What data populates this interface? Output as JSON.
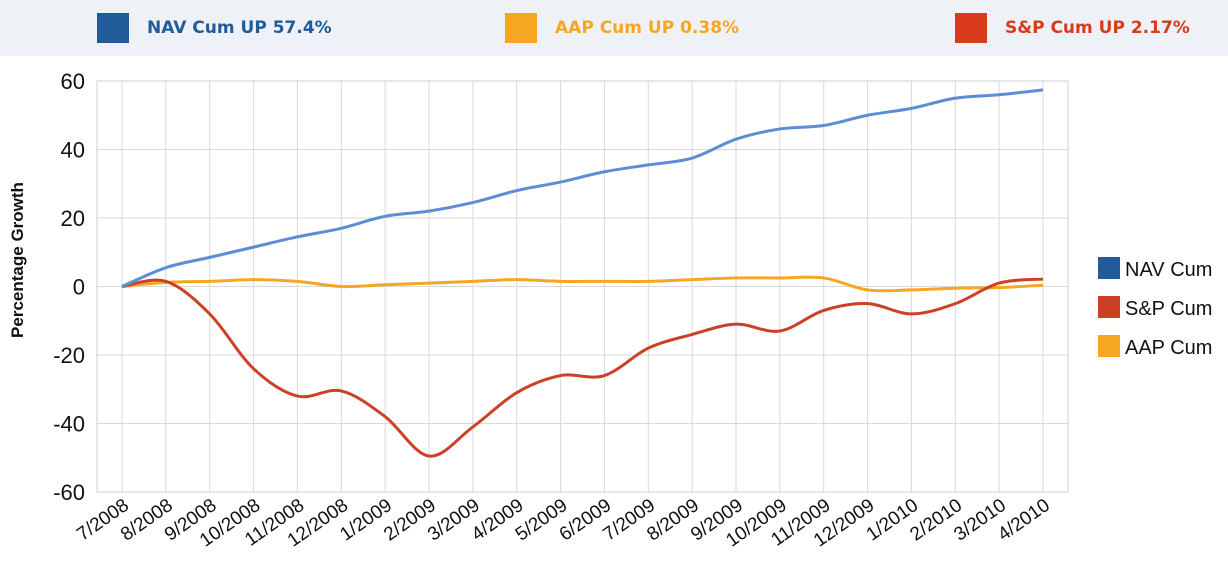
{
  "banner": {
    "items": [
      {
        "label": "NAV Cum UP 57.4%",
        "color": "#1f5c99"
      },
      {
        "label": "AAP Cum UP 0.38%",
        "color": "#f5a623"
      },
      {
        "label": "S&P Cum UP 2.17%",
        "color": "#d93a1a"
      }
    ]
  },
  "chart_data": {
    "type": "line",
    "title": "",
    "xlabel": "",
    "ylabel": "Percentage Growth",
    "ylim": [
      -60,
      60
    ],
    "yticks": [
      60,
      40,
      20,
      0,
      -20,
      -40,
      -60
    ],
    "grid": true,
    "legend_position": "right",
    "x": [
      "7/2008",
      "8/2008",
      "9/2008",
      "10/2008",
      "11/2008",
      "12/2008",
      "1/2009",
      "2/2009",
      "3/2009",
      "4/2009",
      "5/2009",
      "6/2009",
      "7/2009",
      "8/2009",
      "9/2009",
      "10/2009",
      "11/2009",
      "12/2009",
      "1/2010",
      "2/2010",
      "3/2010",
      "4/2010"
    ],
    "series": [
      {
        "name": "NAV Cum",
        "color": "#5b8ed6",
        "legend_color": "#1f5c99",
        "values": [
          0,
          5.5,
          8.5,
          11.5,
          14.5,
          17,
          20.5,
          22,
          24.5,
          28,
          30.5,
          33.5,
          35.5,
          37.5,
          43,
          46,
          47,
          50,
          52,
          55,
          56,
          57.4
        ]
      },
      {
        "name": "S&P Cum",
        "color": "#cc4125",
        "legend_color": "#cc4125",
        "values": [
          0,
          1.5,
          -8,
          -24,
          -32,
          -30.5,
          -38,
          -49.5,
          -41,
          -31,
          -26,
          -26,
          -18,
          -14,
          -11,
          -13,
          -7,
          -5,
          -8,
          -5,
          1,
          2.17
        ]
      },
      {
        "name": "AAP Cum",
        "color": "#f5a623",
        "legend_color": "#f5a623",
        "values": [
          0,
          1.2,
          1.5,
          2.0,
          1.5,
          0,
          0.5,
          1.0,
          1.5,
          2.0,
          1.5,
          1.5,
          1.5,
          2.0,
          2.5,
          2.5,
          2.5,
          -1,
          -1,
          -0.5,
          -0.3,
          0.38
        ]
      }
    ]
  }
}
